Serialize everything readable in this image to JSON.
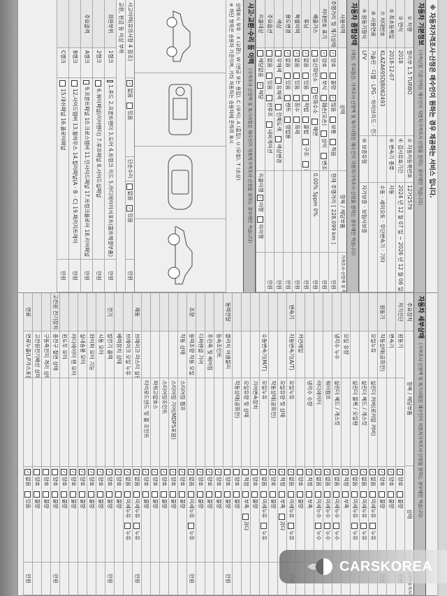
{
  "header_note": "※ 자동차가격조사·산정은 매수인이 원하는 경우 제공하는 서비스 입니다.",
  "basic_info": {
    "title": "자동차 기본정보",
    "subtitle": "(가격산정 기준가격은 매수인이 자동차가격조사·산정을 원하는 경우에만 적습니다)",
    "rows": [
      {
        "label": "① 차명",
        "value": "말리부 1.5 TURBO",
        "label2": "② 자동차등록번호",
        "value2": "12거2579"
      },
      {
        "label": "③ 연식",
        "value": "2018",
        "label2": "④ 검사유효기간",
        "value2": "2024 년 12 월 07 일 ~ 2026 년 12 월 06 일"
      },
      {
        "label": "⑤ 최초등록일",
        "value": "2018-12-07",
        "label2": "⑥ 변속기 종류",
        "value2": "자동"
      },
      {
        "label": "⑦ 차대번호",
        "value": "KLAZA695DJB062493",
        "label2": "",
        "value2": "수동 · 세미오토 · 무단변속기 · 기타"
      },
      {
        "label": "⑧ 사용연료",
        "value": "가솔린 · 디젤 · LPG · 하이브리드 · 전기 · 수소전기 · 기타",
        "label2": "",
        "value2": ""
      },
      {
        "label": "⑨ 원동기형식",
        "value": "LFV",
        "label2": "⑩ 보증유형",
        "value2": "자가보증 · 보험사보증"
      }
    ]
  },
  "overall": {
    "title": "자동차 종합상태",
    "subtitle": "(색상, 주요옵션, 가격조사·산정액 및 특기사항은 매수인이 자동차가격조사·산정을 원하는 경우에만 적습니다)",
    "header": [
      "사용이력",
      "상태",
      "항목 / 해당부품",
      "가격조사·산정액 및 특기사항"
    ],
    "rows": [
      {
        "label": "주행거리 및 계기상태",
        "opts": [
          {
            "t": "양호",
            "on": true
          },
          {
            "t": "불량",
            "on": false
          },
          {
            "t": "많음",
            "on": true
          },
          {
            "t": "보통",
            "on": false
          },
          {
            "t": "적음",
            "on": false
          }
        ],
        "note": "현재 주행거리 [ 228,099 km ]",
        "price": "만원"
      },
      {
        "label": "차대번호 표기",
        "opts": [
          {
            "t": "양호",
            "on": true
          },
          {
            "t": "부식",
            "on": false
          },
          {
            "t": "훼손(오손)",
            "on": false
          },
          {
            "t": "상이",
            "on": false
          },
          {
            "t": "변조(변타)",
            "on": false
          },
          {
            "t": "도말",
            "on": false
          }
        ],
        "note": "",
        "price": "만원"
      },
      {
        "label": "배출가스",
        "opts": [
          {
            "t": "일산화탄소",
            "on": false
          },
          {
            "t": "탄화수소",
            "on": true
          },
          {
            "t": "매연",
            "on": false
          }
        ],
        "note": "0.00%   5ppm   0%",
        "price": "만원"
      },
      {
        "label": "튜닝",
        "opts": [
          {
            "t": "없음",
            "on": true
          },
          {
            "t": "있음",
            "on": false
          },
          {
            "t": "적법",
            "on": false
          },
          {
            "t": "불법",
            "on": false
          },
          {
            "t": "구조",
            "on": false
          },
          {
            "t": "장치",
            "on": false
          }
        ],
        "note": "",
        "price": "만원"
      },
      {
        "label": "특별이력",
        "opts": [
          {
            "t": "없음",
            "on": true
          },
          {
            "t": "있음",
            "on": false
          },
          {
            "t": "침수",
            "on": false
          },
          {
            "t": "화재",
            "on": false
          }
        ],
        "note": "",
        "price": "만원"
      },
      {
        "label": "용도변경",
        "opts": [
          {
            "t": "없음",
            "on": true
          },
          {
            "t": "있음",
            "on": false
          },
          {
            "t": "렌트",
            "on": false
          },
          {
            "t": "영업용",
            "on": false
          }
        ],
        "note": "",
        "price": "만원"
      },
      {
        "label": "색상",
        "opts": [
          {
            "t": "무채색",
            "on": false
          },
          {
            "t": "유채색",
            "on": false
          },
          {
            "t": "전체도색",
            "on": false
          },
          {
            "t": "색상변경",
            "on": false
          }
        ],
        "note": "",
        "price": "만원"
      },
      {
        "label": "주요옵션",
        "opts": [
          {
            "t": "없음",
            "on": false
          },
          {
            "t": "있음",
            "on": false
          },
          {
            "t": "썬루프",
            "on": false
          },
          {
            "t": "내비게이션",
            "on": false
          }
        ],
        "note": "",
        "price": "만원"
      },
      {
        "label": "리콜대상",
        "opts": [
          {
            "t": "해당없음",
            "on": false
          },
          {
            "t": "해당",
            "on": true
          }
        ],
        "note": "리콜이행",
        "note_opts": [
          {
            "t": "이행",
            "on": true
          },
          {
            "t": "미이행",
            "on": false
          }
        ],
        "price": ""
      }
    ]
  },
  "accident": {
    "title": "사고·교환·수리 등 이력",
    "subtitle": "(가격조사·산정액 및 특기사항은 매수인이 자동차가격조사·산정을 원하는 경우에만 적습니다)",
    "note1": "상태표시 부호 : X (교환), W (판금 또는 용접), C (부식), A (흠집), U (요철), T (손상)",
    "note2": "※ 하단 항목은 승용차 기준이며, 기타 자동차는 승용차에 준하여 표시",
    "history_label": "사고이력(유의사항 4 참조)",
    "history_opts": [
      {
        "t": "없음",
        "on": true
      },
      {
        "t": "있음",
        "on": false
      }
    ],
    "repair_label": "단순수리",
    "repair_opts": [
      {
        "t": "없음",
        "on": false
      },
      {
        "t": "있음",
        "on": true
      }
    ],
    "price": "만원"
  },
  "panels": {
    "title": "교환, 판금 등 이상 부위",
    "outer_label": "외판부위",
    "frame_label": "주요골격",
    "ranks": [
      {
        "rank": "1랭크",
        "items": "1.후드  2.프론트펜더  3.도어  4.트렁크 리드  5.라디에이터서포트(볼트체결부품)",
        "checked": "2.프론트펜더"
      },
      {
        "rank": "2랭크",
        "items": "6.쿼터패널(리어펜더)  7.루프패널  8.사이드실패널",
        "checked": ""
      },
      {
        "rank": "A랭크",
        "items": "9.프론트패널  10.크로스멤버  11.인사이드패널  17.트렁크플로어  18.리어패널",
        "checked": ""
      },
      {
        "rank": "B랭크",
        "items": "12.사이드멤버  13.휠하우스  14.필러패널(A · B · C)  19.패키지트레이",
        "checked": ""
      },
      {
        "rank": "C랭크",
        "items": "15.대쉬패널  16.플로어패널",
        "checked": ""
      }
    ]
  },
  "detail": {
    "title": "자동차 세부상태",
    "subtitle": "(가격조사·산정액 및 특기사항은 매수인이 자동차가격조사·산정을 원하는 경우에만 적습니다)",
    "header": [
      "주요장치",
      "항목 / 해당부품",
      "",
      "상태",
      "가격조사·산정액 및 특기사항"
    ],
    "price": "만원",
    "rows": [
      {
        "g": "자기진단",
        "i": "원동기",
        "s": "",
        "o": [
          {
            "t": "양호",
            "on": true
          },
          {
            "t": "불량",
            "on": false
          }
        ]
      },
      {
        "g": "",
        "i": "변속기",
        "s": "",
        "o": [
          {
            "t": "양호",
            "on": true
          },
          {
            "t": "불량",
            "on": false
          }
        ]
      },
      {
        "g": "원동기",
        "i": "작동상태(공회전)",
        "s": "",
        "o": [
          {
            "t": "양호",
            "on": true
          },
          {
            "t": "불량",
            "on": false
          }
        ]
      },
      {
        "g": "",
        "i": "오일누유",
        "s": "실린더 커버(로커암 커버)",
        "o": [
          {
            "t": "없음",
            "on": true
          },
          {
            "t": "미세누유",
            "on": false
          },
          {
            "t": "누유",
            "on": false
          }
        ]
      },
      {
        "g": "",
        "i": "",
        "s": "실린더 헤드 / 개스킷",
        "o": [
          {
            "t": "없음",
            "on": true
          },
          {
            "t": "미세누유",
            "on": false
          },
          {
            "t": "누유",
            "on": false
          }
        ]
      },
      {
        "g": "",
        "i": "",
        "s": "실린더 블록 / 오일팬",
        "o": [
          {
            "t": "없음",
            "on": true
          },
          {
            "t": "미세누유",
            "on": false
          },
          {
            "t": "누유",
            "on": false
          }
        ]
      },
      {
        "g": "",
        "i": "오일 유량",
        "s": "",
        "o": [
          {
            "t": "적정",
            "on": true
          },
          {
            "t": "부족",
            "on": false
          }
        ]
      },
      {
        "g": "",
        "i": "냉각수 누수",
        "s": "실린더 헤드 / 개스킷",
        "o": [
          {
            "t": "없음",
            "on": true
          },
          {
            "t": "미세누수",
            "on": false
          },
          {
            "t": "누수",
            "on": false
          }
        ]
      },
      {
        "g": "",
        "i": "",
        "s": "워터펌프",
        "o": [
          {
            "t": "없음",
            "on": true
          },
          {
            "t": "미세누수",
            "on": false
          },
          {
            "t": "누수",
            "on": false
          }
        ]
      },
      {
        "g": "",
        "i": "",
        "s": "라디에이터",
        "o": [
          {
            "t": "없음",
            "on": true
          },
          {
            "t": "미세누수",
            "on": false
          },
          {
            "t": "누수",
            "on": false
          }
        ]
      },
      {
        "g": "",
        "i": "",
        "s": "냉각수 수량",
        "o": [
          {
            "t": "적정",
            "on": true
          },
          {
            "t": "부족",
            "on": false
          }
        ]
      },
      {
        "g": "",
        "i": "커먼레일",
        "s": "",
        "o": [
          {
            "t": "양호",
            "on": false
          },
          {
            "t": "불량",
            "on": false
          }
        ]
      },
      {
        "g": "변속기",
        "i": "자동변속기(A/T)",
        "s": "오일누유",
        "o": [
          {
            "t": "없음",
            "on": true
          },
          {
            "t": "미세누유",
            "on": false
          },
          {
            "t": "누유",
            "on": false
          }
        ]
      },
      {
        "g": "",
        "i": "",
        "s": "오일유량 및 상태",
        "o": [
          {
            "t": "적정",
            "on": true
          },
          {
            "t": "부족",
            "on": false
          },
          {
            "t": "과다",
            "on": false
          }
        ]
      },
      {
        "g": "",
        "i": "",
        "s": "작동상태(공회전)",
        "o": [
          {
            "t": "양호",
            "on": true
          },
          {
            "t": "불량",
            "on": false
          }
        ]
      },
      {
        "g": "",
        "i": "수동변속기(M/T)",
        "s": "오일누유",
        "o": [
          {
            "t": "없음",
            "on": false
          },
          {
            "t": "미세누유",
            "on": false
          },
          {
            "t": "누유",
            "on": false
          }
        ]
      },
      {
        "g": "",
        "i": "",
        "s": "기어변속장치",
        "o": [
          {
            "t": "양호",
            "on": false
          },
          {
            "t": "불량",
            "on": false
          }
        ]
      },
      {
        "g": "",
        "i": "",
        "s": "오일유량 및 상태",
        "o": [
          {
            "t": "적정",
            "on": false
          },
          {
            "t": "부족",
            "on": false
          },
          {
            "t": "과다",
            "on": false
          }
        ]
      },
      {
        "g": "",
        "i": "",
        "s": "작동상태(공회전)",
        "o": [
          {
            "t": "양호",
            "on": false
          },
          {
            "t": "불량",
            "on": false
          }
        ]
      },
      {
        "g": "동력전달",
        "i": "클러치 어셈블리",
        "s": "",
        "o": [
          {
            "t": "양호",
            "on": false
          },
          {
            "t": "불량",
            "on": false
          }
        ]
      },
      {
        "g": "",
        "i": "등속조인트",
        "s": "",
        "o": [
          {
            "t": "양호",
            "on": true
          },
          {
            "t": "불량",
            "on": false
          }
        ]
      },
      {
        "g": "",
        "i": "추진축 및 베어링",
        "s": "",
        "o": [
          {
            "t": "양호",
            "on": true
          },
          {
            "t": "불량",
            "on": false
          }
        ]
      },
      {
        "g": "",
        "i": "디퍼렌셜 기어",
        "s": "",
        "o": [
          {
            "t": "양호",
            "on": true
          },
          {
            "t": "불량",
            "on": false
          }
        ]
      },
      {
        "g": "조향",
        "i": "동력조향 작동 오일 누유",
        "s": "",
        "o": [
          {
            "t": "없음",
            "on": true
          },
          {
            "t": "미세누유",
            "on": false
          },
          {
            "t": "누유",
            "on": false
          }
        ]
      },
      {
        "g": "",
        "i": "작동 상태",
        "s": "스티어링 펌프",
        "o": [
          {
            "t": "양호",
            "on": true
          },
          {
            "t": "불량",
            "on": false
          }
        ]
      },
      {
        "g": "",
        "i": "",
        "s": "스티어링 기어(MDPS포함)",
        "o": [
          {
            "t": "양호",
            "on": true
          },
          {
            "t": "불량",
            "on": false
          }
        ]
      },
      {
        "g": "",
        "i": "",
        "s": "스티어링조인트",
        "o": [
          {
            "t": "양호",
            "on": true
          },
          {
            "t": "불량",
            "on": false
          }
        ]
      },
      {
        "g": "",
        "i": "",
        "s": "파워고압호스",
        "o": [
          {
            "t": "양호",
            "on": true
          },
          {
            "t": "불량",
            "on": false
          }
        ]
      },
      {
        "g": "",
        "i": "",
        "s": "타이로드엔드 및 볼 조인트",
        "o": [
          {
            "t": "양호",
            "on": true
          },
          {
            "t": "불량",
            "on": false
          }
        ]
      },
      {
        "g": "제동",
        "i": "브레이크 마스터 실린더오일 누유",
        "s": "",
        "o": [
          {
            "t": "없음",
            "on": true
          },
          {
            "t": "미세누유",
            "on": false
          },
          {
            "t": "누유",
            "on": false
          }
        ]
      },
      {
        "g": "",
        "i": "브레이크 오일 누유",
        "s": "",
        "o": [
          {
            "t": "없음",
            "on": true
          },
          {
            "t": "미세누유",
            "on": false
          },
          {
            "t": "누유",
            "on": false
          }
        ]
      },
      {
        "g": "",
        "i": "배력장치 상태",
        "s": "",
        "o": [
          {
            "t": "양호",
            "on": true
          },
          {
            "t": "불량",
            "on": false
          }
        ]
      },
      {
        "g": "전기",
        "i": "발전기 출력",
        "s": "",
        "o": [
          {
            "t": "양호",
            "on": true
          },
          {
            "t": "불량",
            "on": false
          }
        ]
      },
      {
        "g": "",
        "i": "시동 모터",
        "s": "",
        "o": [
          {
            "t": "양호",
            "on": true
          },
          {
            "t": "불량",
            "on": false
          }
        ]
      },
      {
        "g": "",
        "i": "와이퍼 모터 기능",
        "s": "",
        "o": [
          {
            "t": "양호",
            "on": true
          },
          {
            "t": "불량",
            "on": false
          }
        ]
      },
      {
        "g": "",
        "i": "실내송풍 모터",
        "s": "",
        "o": [
          {
            "t": "양호",
            "on": true
          },
          {
            "t": "불량",
            "on": false
          }
        ]
      },
      {
        "g": "",
        "i": "라디에이터 팬 모터",
        "s": "",
        "o": [
          {
            "t": "양호",
            "on": true
          },
          {
            "t": "불량",
            "on": false
          }
        ]
      },
      {
        "g": "",
        "i": "윈도우 모터",
        "s": "",
        "o": [
          {
            "t": "양호",
            "on": true
          },
          {
            "t": "불량",
            "on": false
          }
        ]
      },
      {
        "g": "고전원 전기장치",
        "i": "충전구 절연 상태",
        "s": "",
        "o": [
          {
            "t": "양호",
            "on": false
          },
          {
            "t": "불량",
            "on": false
          }
        ]
      },
      {
        "g": "",
        "i": "구동축전지 격리 상태",
        "s": "",
        "o": [
          {
            "t": "양호",
            "on": false
          },
          {
            "t": "불량",
            "on": false
          }
        ]
      },
      {
        "g": "",
        "i": "고전원전기배선 상태(접속단자, 피복, 보호기구)",
        "s": "",
        "o": [
          {
            "t": "양호",
            "on": false
          },
          {
            "t": "불량",
            "on": false
          }
        ]
      },
      {
        "g": "연료",
        "i": "연료누출(LP가스포함)",
        "s": "",
        "o": [
          {
            "t": "없음",
            "on": true
          },
          {
            "t": "있음",
            "on": false
          }
        ]
      }
    ]
  },
  "watermark": {
    "brand": "CARSKOREA",
    "icon": "flame-logo-icon"
  }
}
